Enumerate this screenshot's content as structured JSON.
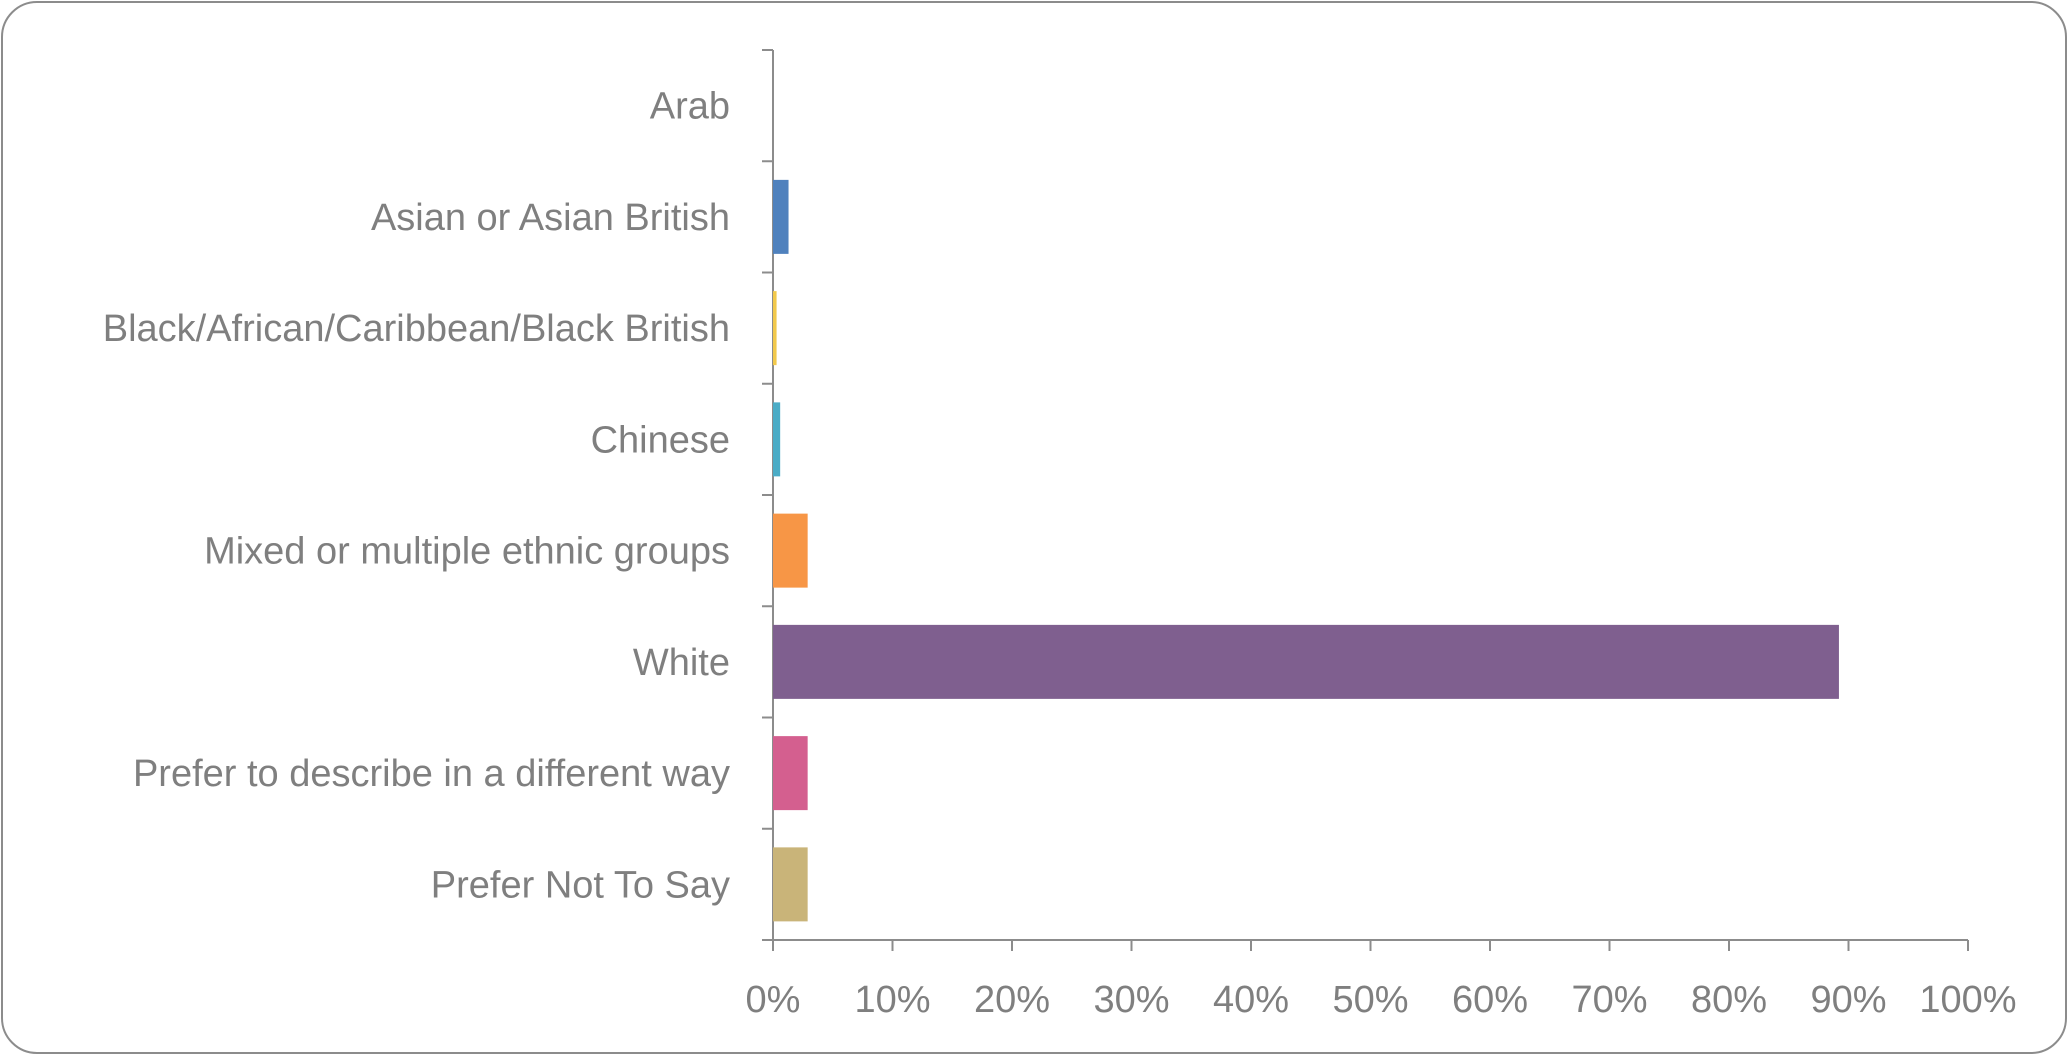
{
  "chart_data": {
    "type": "bar",
    "orientation": "horizontal",
    "categories": [
      "Arab",
      "Asian or Asian British",
      "Black/African/Caribbean/Black British",
      "Chinese",
      "Mixed or multiple ethnic groups",
      "White",
      "Prefer to describe in a different way",
      "Prefer Not To Say"
    ],
    "values": [
      0,
      1.3,
      0.3,
      0.6,
      2.9,
      89.2,
      2.9,
      2.9
    ],
    "colors": [
      "#4f81bd",
      "#4f81bd",
      "#f2c94c",
      "#4bacc6",
      "#f79646",
      "#7f5f8f",
      "#d45f8f",
      "#c9b479"
    ],
    "xlim": [
      0,
      100
    ],
    "xticks": [
      "0%",
      "10%",
      "20%",
      "30%",
      "40%",
      "50%",
      "60%",
      "70%",
      "80%",
      "90%",
      "100%"
    ],
    "grid": false,
    "legend": "none"
  }
}
